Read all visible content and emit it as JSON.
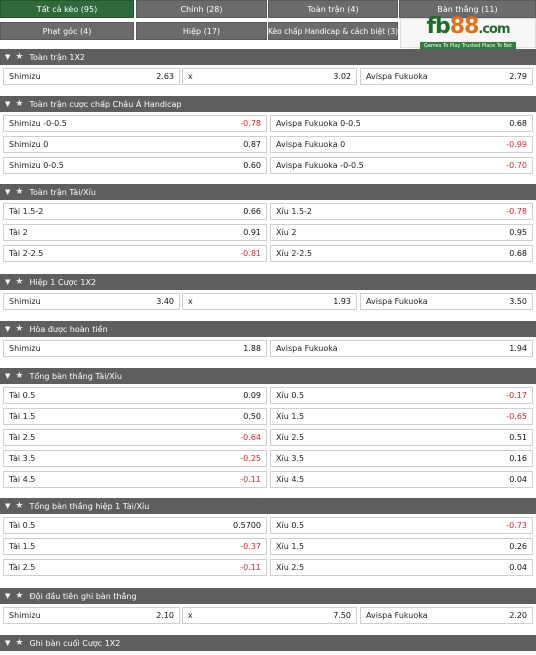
{
  "tabs": [
    {
      "label": "Tất cả kèo (95)",
      "active": true
    },
    {
      "label": "Chính (28)"
    },
    {
      "label": "Toàn trận (4)"
    },
    {
      "label": "Bàn thắng (11)"
    },
    {
      "label": "Phạt góc (4)"
    },
    {
      "label": "Hiệp (17)"
    },
    {
      "label": "Kèo chấp Handicap & cách biệt (3)"
    }
  ],
  "logo": {
    "fb": "fb",
    "n88": "88",
    "com": ".com",
    "tagline": "Games To Play  Trusted Place To Bet"
  },
  "sections": [
    {
      "title": "Toàn trận 1X2",
      "rows": [
        [
          {
            "label": "Shimizu",
            "value": "2.63"
          },
          {
            "label": "x",
            "value": "3.02"
          },
          {
            "label": "Avispa Fukuoka",
            "value": "2.79"
          }
        ]
      ]
    },
    {
      "title": "Toàn trận cược chấp Châu Á Handicap",
      "rows": [
        [
          {
            "label": "Shimizu -0-0.5",
            "value": "-0.78"
          },
          {
            "label": "Avispa Fukuoka 0-0.5",
            "value": "0.68"
          }
        ],
        [
          {
            "label": "Shimizu 0",
            "value": "0.87"
          },
          {
            "label": "Avispa Fukuoka 0",
            "value": "-0.99"
          }
        ],
        [
          {
            "label": "Shimizu 0-0.5",
            "value": "0.60"
          },
          {
            "label": "Avispa Fukuoka -0-0.5",
            "value": "-0.70"
          }
        ]
      ]
    },
    {
      "title": "Toàn trận Tài/Xỉu",
      "rows": [
        [
          {
            "label": "Tài 1.5-2",
            "value": "0.66"
          },
          {
            "label": "Xỉu 1.5-2",
            "value": "-0.78"
          }
        ],
        [
          {
            "label": "Tài 2",
            "value": "0.91"
          },
          {
            "label": "Xỉu 2",
            "value": "0.95"
          }
        ],
        [
          {
            "label": "Tài 2-2.5",
            "value": "-0.81"
          },
          {
            "label": "Xỉu 2-2.5",
            "value": "0.68"
          }
        ]
      ]
    },
    {
      "title": "Hiệp 1 Cược 1X2",
      "rows": [
        [
          {
            "label": "Shimizu",
            "value": "3.40"
          },
          {
            "label": "x",
            "value": "1.93"
          },
          {
            "label": "Avispa Fukuoka",
            "value": "3.50"
          }
        ]
      ]
    },
    {
      "title": "Hòa được hoàn tiền",
      "rows": [
        [
          {
            "label": "Shimizu",
            "value": "1.88"
          },
          {
            "label": "Avispa Fukuoka",
            "value": "1.94"
          }
        ]
      ]
    },
    {
      "title": "Tổng bàn thắng Tài/Xỉu",
      "rows": [
        [
          {
            "label": "Tài 0.5",
            "value": "0.09"
          },
          {
            "label": "Xỉu 0.5",
            "value": "-0.17"
          }
        ],
        [
          {
            "label": "Tài 1.5",
            "value": "0.50"
          },
          {
            "label": "Xỉu 1.5",
            "value": "-0.65"
          }
        ],
        [
          {
            "label": "Tài 2.5",
            "value": "-0.64"
          },
          {
            "label": "Xỉu 2.5",
            "value": "0.51"
          }
        ],
        [
          {
            "label": "Tài 3.5",
            "value": "-0.25"
          },
          {
            "label": "Xỉu 3.5",
            "value": "0.16"
          }
        ],
        [
          {
            "label": "Tài 4.5",
            "value": "-0.11"
          },
          {
            "label": "Xỉu 4.5",
            "value": "0.04"
          }
        ]
      ]
    },
    {
      "title": "Tổng bàn thắng hiệp 1 Tài/Xỉu",
      "rows": [
        [
          {
            "label": "Tài 0.5",
            "value": "0.5700"
          },
          {
            "label": "Xỉu 0.5",
            "value": "-0.73"
          }
        ],
        [
          {
            "label": "Tài 1.5",
            "value": "-0.37"
          },
          {
            "label": "Xỉu 1.5",
            "value": "0.26"
          }
        ],
        [
          {
            "label": "Tài 2.5",
            "value": "-0.11"
          },
          {
            "label": "Xỉu 2.5",
            "value": "0.04"
          }
        ]
      ]
    },
    {
      "title": "Đội đầu tiên ghi bàn thắng",
      "rows": [
        [
          {
            "label": "Shimizu",
            "value": "2.10"
          },
          {
            "label": "x",
            "value": "7.50"
          },
          {
            "label": "Avispa Fukuoka",
            "value": "2.20"
          }
        ]
      ]
    },
    {
      "title": "Ghi bàn cuối Cược 1X2",
      "rows": []
    }
  ],
  "colors": {
    "header_bg": "#5e5e5e",
    "tab_bg": "#6b6b6b",
    "tab_active_bg": "#2f6b3a",
    "negative": "#d8232a"
  }
}
